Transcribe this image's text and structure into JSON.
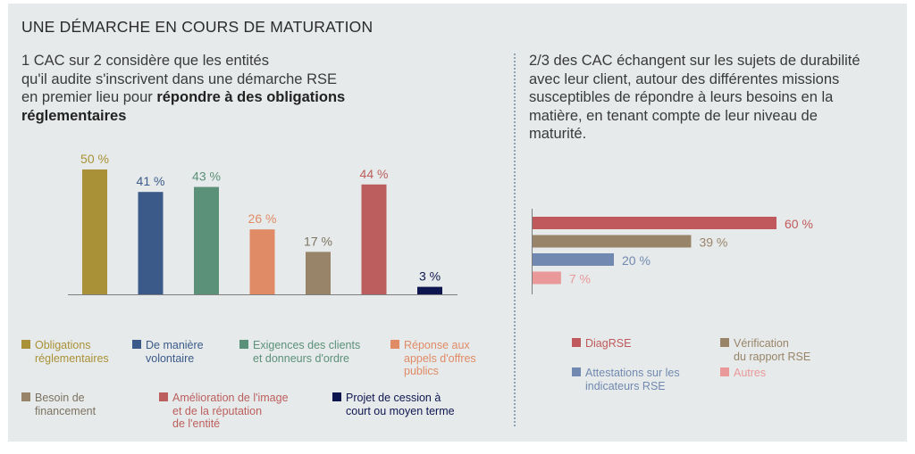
{
  "title": "UNE DÉMARCHE EN COURS DE MATURATION",
  "left_intro": {
    "line1": "1 CAC sur 2 considère que les entités",
    "line2": "qu'il audite s'inscrivent dans une démarche RSE",
    "line3_plain": "en premier lieu pour ",
    "line3_bold": "répondre à des obligations",
    "line4_bold": "réglementaires"
  },
  "right_intro": {
    "line1": "2/3 des CAC échangent sur les sujets de durabilité",
    "line2": "avec leur client, autour des différentes missions",
    "line3": "susceptibles de répondre à leurs besoins en la",
    "line4": "matière, en tenant compte de leur niveau de",
    "line5": "maturité."
  },
  "chart_data": [
    {
      "type": "bar",
      "orientation": "vertical",
      "unit": "%",
      "categories": [
        "Obligations réglementaires",
        "De manière volontaire",
        "Exigences des clients et donneurs d'ordre",
        "Réponse aux appels d'offres publics",
        "Besoin de financement",
        "Amélioration de l'image et de la réputation de l'entité",
        "Projet de cession à court ou moyen terme"
      ],
      "values": [
        50,
        41,
        43,
        26,
        17,
        44,
        3
      ],
      "labels": [
        "50 %",
        "41 %",
        "43 %",
        "26 %",
        "17 %",
        "44 %",
        "3 %"
      ],
      "colors": [
        "#a99137",
        "#3b5a8a",
        "#5b9079",
        "#e08b66",
        "#988468",
        "#bc5e5d",
        "#0e1650"
      ],
      "label_colors": [
        "#a99137",
        "#3b5a8a",
        "#5b9079",
        "#e08b66",
        "#7c7262",
        "#bc5e5d",
        "#0e1650"
      ],
      "legend": [
        {
          "lines": [
            "Obligations",
            "réglementaires"
          ]
        },
        {
          "lines": [
            "De manière",
            "volontaire"
          ]
        },
        {
          "lines": [
            "Exigences des clients",
            "et donneurs d'ordre"
          ]
        },
        {
          "lines": [
            "Réponse aux",
            "appels d'offres",
            "publics"
          ]
        },
        {
          "lines": [
            "Besoin de",
            "financement"
          ]
        },
        {
          "lines": [
            "Amélioration de l'image",
            "et de la réputation",
            "de l'entité"
          ]
        },
        {
          "lines": [
            "Projet de cession à",
            "court ou moyen terme"
          ]
        }
      ]
    },
    {
      "type": "bar",
      "orientation": "horizontal",
      "unit": "%",
      "categories": [
        "DiagRSE",
        "Vérification du rapport RSE",
        "Attestations sur les indicateurs RSE",
        "Autres"
      ],
      "values": [
        60,
        39,
        20,
        7
      ],
      "labels": [
        "60 %",
        "39 %",
        "20 %",
        "7 %"
      ],
      "colors": [
        "#c0595b",
        "#988468",
        "#7189b0",
        "#e9999a"
      ],
      "legend": [
        {
          "lines": [
            "DiagRSE"
          ]
        },
        {
          "lines": [
            "Vérification",
            "du rapport RSE"
          ]
        },
        {
          "lines": [
            "Attestations sur les",
            "indicateurs RSE"
          ]
        },
        {
          "lines": [
            "Autres"
          ]
        }
      ]
    }
  ]
}
